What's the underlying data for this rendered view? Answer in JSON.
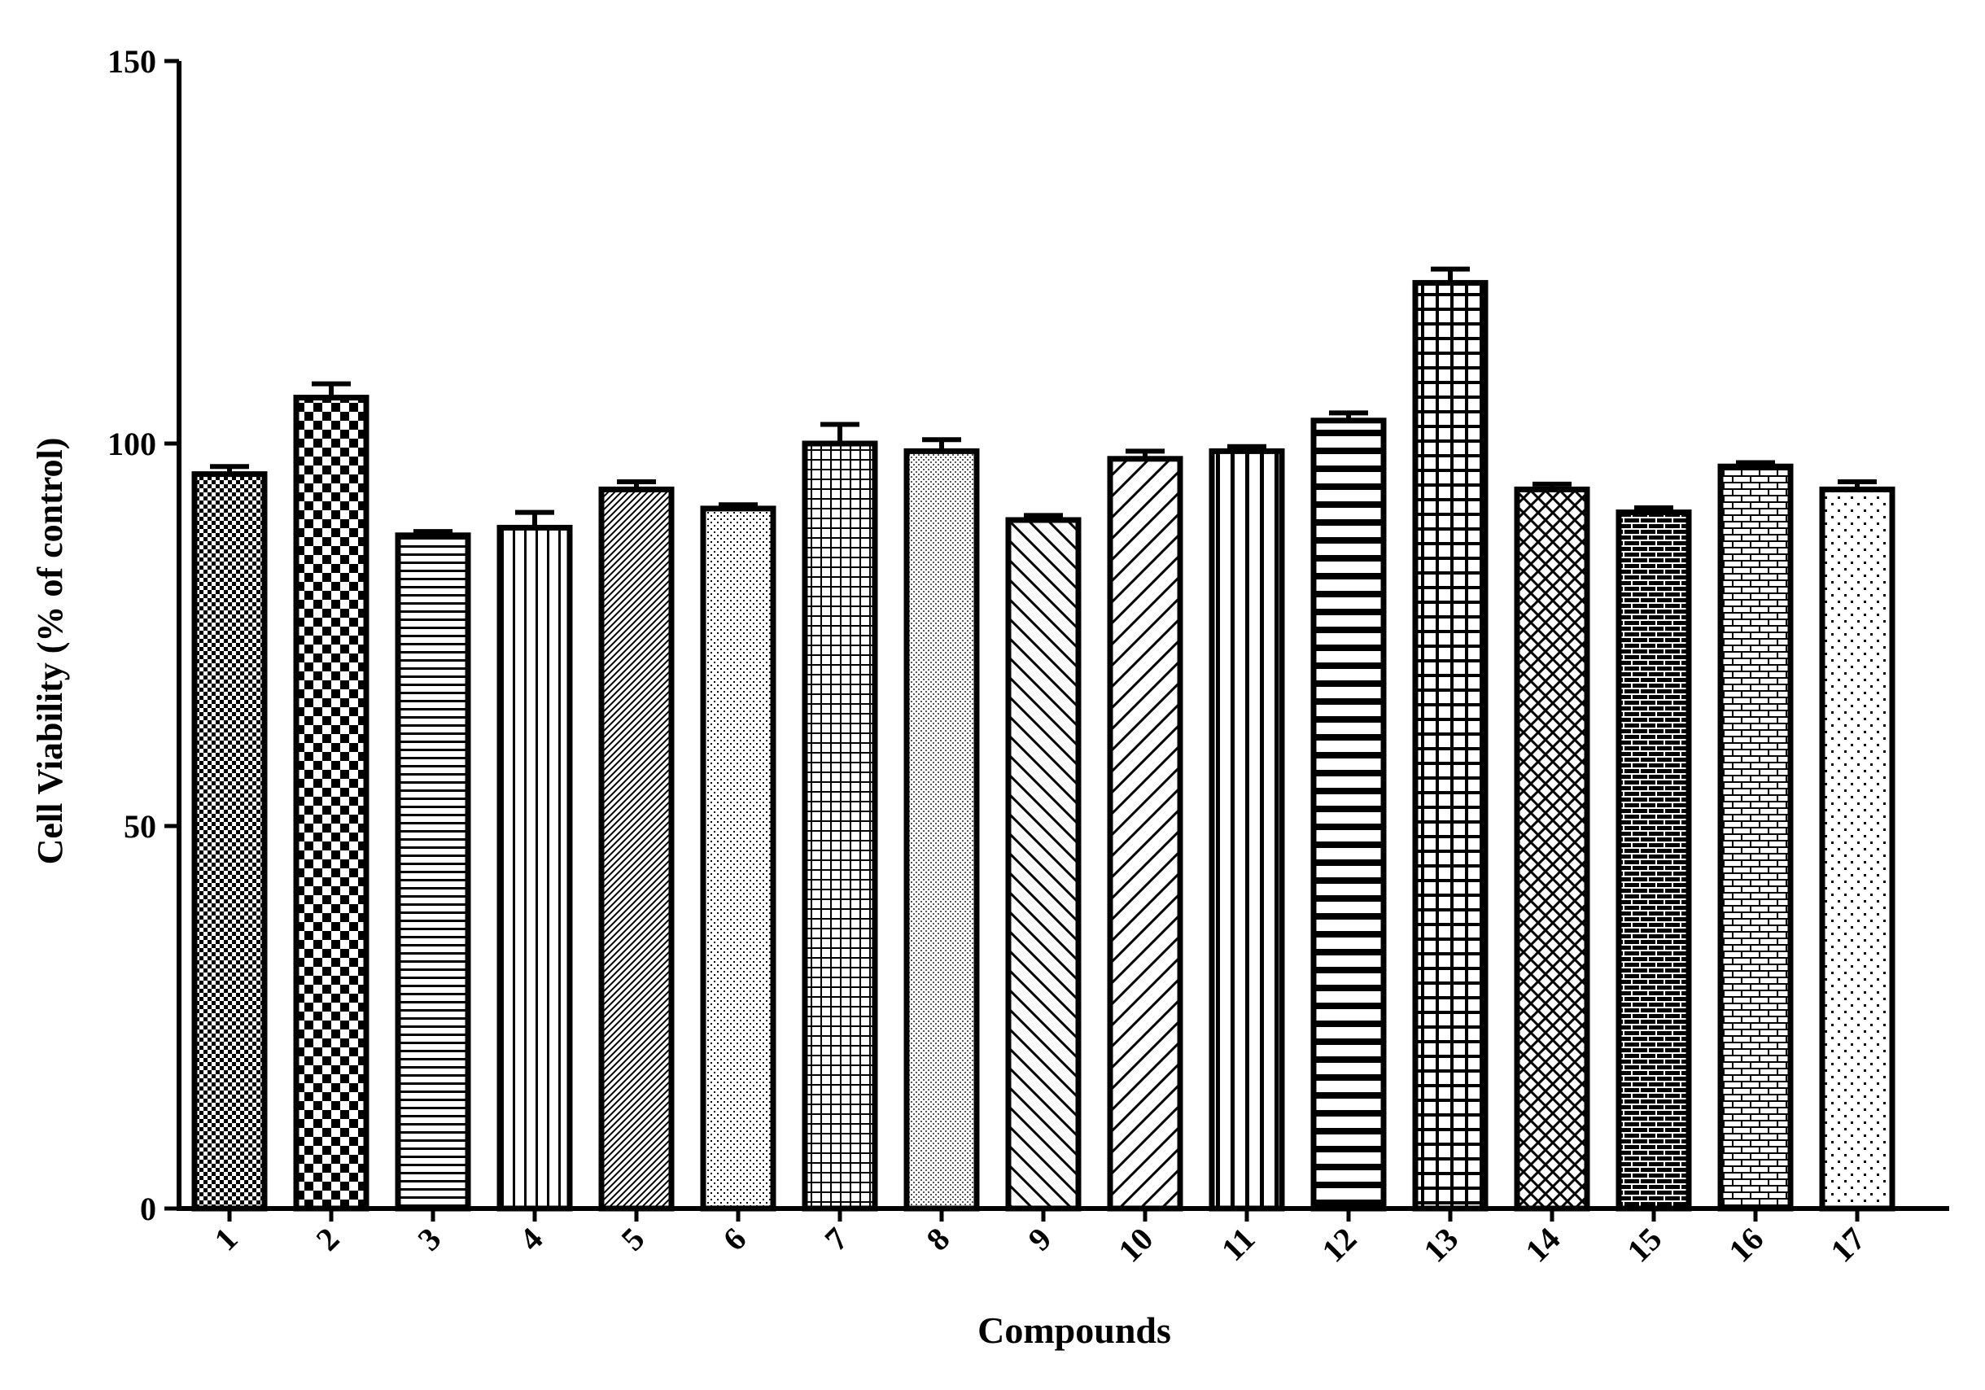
{
  "chart_data": {
    "type": "bar",
    "title": "",
    "xlabel": "Compounds",
    "ylabel": "Cell Viability (% of control)",
    "ylim": [
      0,
      150
    ],
    "yticks": [
      0,
      50,
      100,
      150
    ],
    "grid": false,
    "legend": "none",
    "categories": [
      "1",
      "2",
      "3",
      "4",
      "5",
      "6",
      "7",
      "8",
      "9",
      "10",
      "11",
      "12",
      "13",
      "14",
      "15",
      "16",
      "17"
    ],
    "values": [
      96,
      106,
      88,
      89,
      94,
      91.5,
      100,
      99,
      90,
      98,
      99,
      103,
      121,
      94,
      91,
      97,
      94
    ],
    "errors": [
      1,
      1.8,
      0.5,
      2,
      1,
      0.5,
      2.5,
      1.5,
      0.6,
      1,
      0.6,
      1,
      1.8,
      0.7,
      0.6,
      0.5,
      1
    ],
    "patterns": [
      "fine-checker",
      "checker",
      "horizontal-lines",
      "vertical-lines",
      "diagonal-fine",
      "dots",
      "fine-grid",
      "dense-dots",
      "backward-diagonal",
      "forward-diagonal",
      "wide-vertical",
      "wide-horizontal",
      "wide-grid",
      "diamond-lattice",
      "dark-brick",
      "light-brick",
      "sparse-dots"
    ],
    "colors": {
      "ink": "#000000",
      "background": "#ffffff"
    }
  }
}
